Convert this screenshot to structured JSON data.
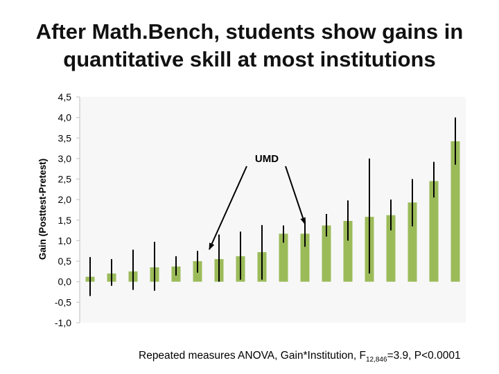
{
  "title_line1": "After Math.Bench, students show gains in",
  "title_line2": "quantitative skill at most institutions",
  "footnote": {
    "pre": "Repeated measures ANOVA, Gain*Institution,  F",
    "sub": "12,846",
    "post": "=3.9, P<0.0001"
  },
  "annotation": "UMD",
  "colors": {
    "bar": "#9bbb59",
    "error": "#000000",
    "plot_bg": "#f7f7f7"
  },
  "chart_data": {
    "type": "bar",
    "title": "After Math.Bench, students show gains in quantitative skill at most institutions",
    "ylabel": "Gain (Posttest-Pretest)",
    "ylim": [
      -1.0,
      4.5
    ],
    "yticks": [
      "4,5",
      "4,0",
      "3,5",
      "3,0",
      "2,5",
      "2,0",
      "1,5",
      "1,0",
      "0,5",
      "0,0",
      "-0,5",
      "-1,0"
    ],
    "grid": false,
    "values": [
      0.12,
      0.2,
      0.25,
      0.35,
      0.37,
      0.5,
      0.55,
      0.62,
      0.72,
      1.17,
      1.17,
      1.37,
      1.48,
      1.58,
      1.62,
      1.93,
      2.45,
      3.42
    ],
    "error_low": [
      -0.35,
      -0.1,
      -0.2,
      -0.22,
      0.15,
      0.22,
      0.0,
      0.05,
      0.05,
      0.95,
      0.85,
      1.1,
      1.0,
      0.2,
      1.25,
      1.35,
      2.05,
      2.85
    ],
    "error_high": [
      0.6,
      0.55,
      0.78,
      0.97,
      0.62,
      0.75,
      1.15,
      1.22,
      1.38,
      1.37,
      1.5,
      1.65,
      1.98,
      3.0,
      2.0,
      2.5,
      2.92,
      4.0
    ],
    "annotations": [
      {
        "text": "UMD",
        "points_to_bars": [
          6,
          10
        ]
      }
    ]
  }
}
